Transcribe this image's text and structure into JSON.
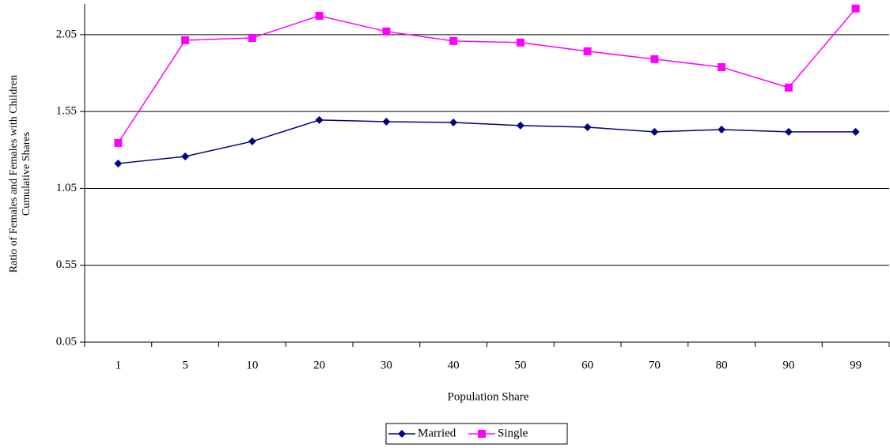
{
  "chart_data": {
    "type": "line",
    "ylabel": [
      "Ratio of Females and Females with Children",
      "Cumulative Shares"
    ],
    "xlabel": "Population Share",
    "categories": [
      "1",
      "5",
      "10",
      "20",
      "30",
      "40",
      "50",
      "60",
      "70",
      "80",
      "90",
      "99"
    ],
    "series": [
      {
        "name": "Married",
        "color": "#000080",
        "marker": "diamond",
        "values": [
          1.212,
          1.258,
          1.356,
          1.495,
          1.484,
          1.479,
          1.459,
          1.448,
          1.418,
          1.433,
          1.418,
          1.418
        ]
      },
      {
        "name": "Single",
        "color": "#ff00ff",
        "marker": "square",
        "values": [
          1.346,
          2.014,
          2.029,
          2.173,
          2.071,
          2.009,
          1.999,
          1.942,
          1.891,
          1.839,
          1.706,
          2.22
        ]
      }
    ],
    "ylim": [
      0.05,
      2.25
    ],
    "yticks": [
      0.05,
      0.55,
      1.05,
      1.55,
      2.05
    ],
    "grid": true
  }
}
